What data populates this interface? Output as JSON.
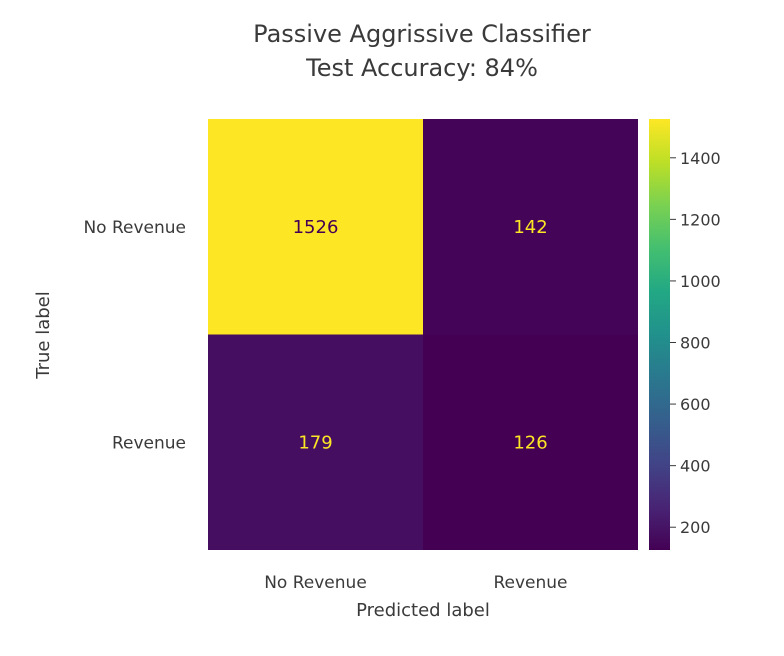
{
  "chart_data": {
    "type": "heatmap",
    "title_line1": "Passive Aggrissive Classifier",
    "title_line2": "Test Accuracy: 84%",
    "xlabel": "Predicted label",
    "ylabel": "True label",
    "x_categories": [
      "No Revenue",
      "Revenue"
    ],
    "y_categories": [
      "No Revenue",
      "Revenue"
    ],
    "values": [
      [
        1526,
        142
      ],
      [
        179,
        126
      ]
    ],
    "colormap": "viridis",
    "colorbar": {
      "min": 126,
      "max": 1526,
      "ticks": [
        200,
        400,
        600,
        800,
        1000,
        1200,
        1400
      ]
    },
    "grid": false
  },
  "colors": {
    "low": "#440154",
    "high": "#fde725",
    "text_on_dark": "#fde725",
    "text_on_light": "#440154"
  }
}
